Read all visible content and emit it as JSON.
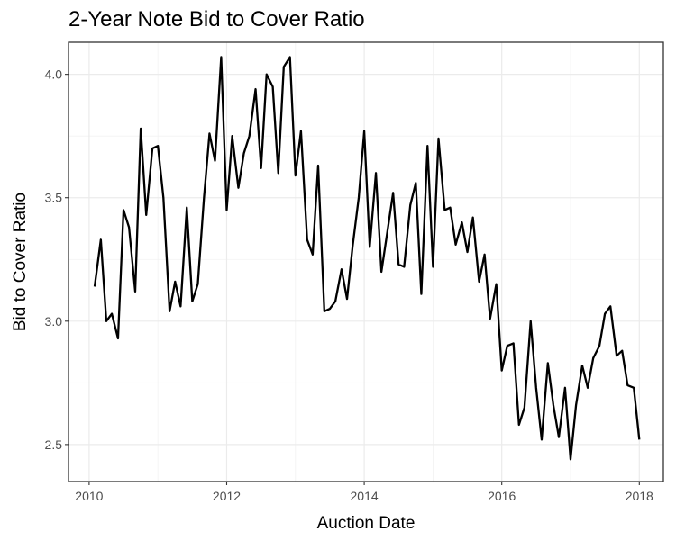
{
  "chart_data": {
    "type": "line",
    "title": "2-Year Note Bid to Cover Ratio",
    "xlabel": "Auction Date",
    "ylabel": "Bid to Cover Ratio",
    "x_ticks": [
      2010,
      2012,
      2014,
      2016,
      2018
    ],
    "x_tick_labels": [
      "2010",
      "2012",
      "2014",
      "2016",
      "2018"
    ],
    "y_ticks": [
      2.5,
      3.0,
      3.5,
      4.0
    ],
    "y_tick_labels": [
      "2.5",
      "3.0",
      "3.5",
      "4.0"
    ],
    "xlim": [
      2009.7,
      2018.35
    ],
    "ylim": [
      2.35,
      4.13
    ],
    "grid": true,
    "line_color": "#000000",
    "series": [
      {
        "x": [
          2010.08,
          2010.17,
          2010.25,
          2010.33,
          2010.42,
          2010.5,
          2010.58,
          2010.67,
          2010.75,
          2010.83,
          2010.92,
          2011.0,
          2011.08,
          2011.17,
          2011.25,
          2011.33,
          2011.42,
          2011.5,
          2011.58,
          2011.67,
          2011.75,
          2011.83,
          2011.92,
          2012.0,
          2012.08,
          2012.17,
          2012.25,
          2012.33,
          2012.42,
          2012.5,
          2012.58,
          2012.67,
          2012.75,
          2012.83,
          2012.92,
          2013.0,
          2013.08,
          2013.17,
          2013.25,
          2013.33,
          2013.42,
          2013.5,
          2013.58,
          2013.67,
          2013.75,
          2013.83,
          2013.92,
          2014.0,
          2014.08,
          2014.17,
          2014.25,
          2014.33,
          2014.42,
          2014.5,
          2014.58,
          2014.67,
          2014.75,
          2014.83,
          2014.92,
          2015.0,
          2015.08,
          2015.17,
          2015.25,
          2015.33,
          2015.42,
          2015.5,
          2015.58,
          2015.67,
          2015.75,
          2015.83,
          2015.92,
          2016.0,
          2016.08,
          2016.17,
          2016.25,
          2016.33,
          2016.42,
          2016.5,
          2016.58,
          2016.67,
          2016.75,
          2016.83,
          2016.92,
          2017.0,
          2017.08,
          2017.17,
          2017.25,
          2017.33,
          2017.42,
          2017.5,
          2017.58,
          2017.67,
          2017.75,
          2017.83,
          2017.92,
          2018.0
        ],
        "y": [
          3.14,
          3.33,
          3.0,
          3.03,
          2.93,
          3.45,
          3.38,
          3.12,
          3.78,
          3.43,
          3.7,
          3.71,
          3.5,
          3.04,
          3.16,
          3.06,
          3.46,
          3.08,
          3.15,
          3.5,
          3.76,
          3.65,
          4.07,
          3.45,
          3.75,
          3.54,
          3.68,
          3.75,
          3.94,
          3.62,
          4.0,
          3.95,
          3.6,
          4.03,
          4.07,
          3.59,
          3.77,
          3.33,
          3.27,
          3.63,
          3.04,
          3.05,
          3.08,
          3.21,
          3.09,
          3.3,
          3.5,
          3.77,
          3.3,
          3.6,
          3.2,
          3.35,
          3.52,
          3.23,
          3.22,
          3.47,
          3.56,
          3.11,
          3.71,
          3.22,
          3.74,
          3.45,
          3.46,
          3.31,
          3.4,
          3.28,
          3.42,
          3.16,
          3.27,
          3.01,
          3.15,
          2.8,
          2.9,
          2.91,
          2.58,
          2.65,
          3.0,
          2.73,
          2.52,
          2.83,
          2.66,
          2.53,
          2.73,
          2.44,
          2.66,
          2.82,
          2.73,
          2.85,
          2.9,
          3.03,
          3.06,
          2.86,
          2.88,
          2.74,
          2.73,
          2.52
        ]
      }
    ]
  }
}
